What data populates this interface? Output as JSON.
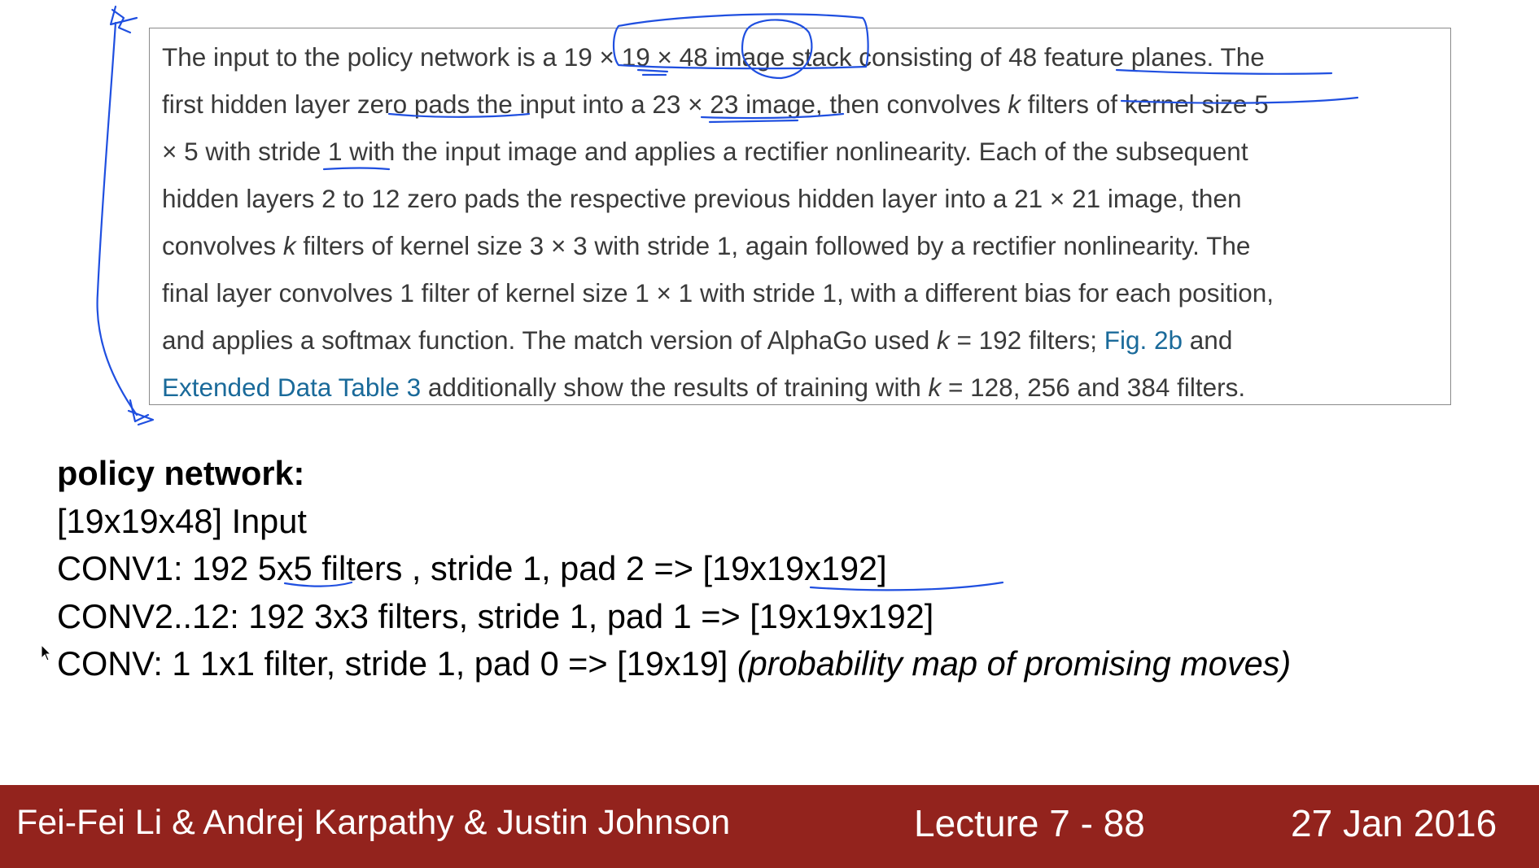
{
  "excerpt": {
    "lines": [
      [
        "The input to the policy network is a 19 × 19 × 48 image stack consisting of 48 feature planes. The"
      ],
      [
        "first hidden layer zero pads the input into a 23 × 23 image, then convolves ",
        "k",
        " filters of kernel size 5"
      ],
      [
        "× 5 with stride 1 with the input image and applies a rectifier nonlinearity. Each of the subsequent"
      ],
      [
        "hidden layers 2 to 12 zero pads the respective previous hidden layer into a 21 × 21 image, then"
      ],
      [
        "convolves ",
        "k",
        " filters of kernel size 3 × 3 with stride 1, again followed by a rectifier nonlinearity. The"
      ],
      [
        "final layer convolves 1 filter of kernel size 1 × 1 with stride 1, with a different bias for each position,"
      ],
      [
        "and applies a softmax function. The match version of AlphaGo used ",
        "k",
        " = 192 filters; ",
        "Fig. 2b",
        " and"
      ],
      [
        "Extended Data Table 3",
        " additionally show the results of training with ",
        "k",
        " = 128, 256 and 384 filters."
      ]
    ]
  },
  "notes": {
    "heading": "policy network:",
    "input_line": "[19x19x48] Input",
    "conv1_line": "CONV1: 192 5x5 filters , stride 1, pad 2 => [19x19x192]",
    "conv2_line": "CONV2..12: 192 3x3 filters, stride 1, pad 1 => [19x19x192]",
    "conv_final_prefix": "CONV: 1 1x1 filter, stride 1, pad 0 => [19x19] ",
    "conv_final_note": "(probability map of promising moves)"
  },
  "footer": {
    "authors": "Fei-Fei Li & Andrej Karpathy & Justin Johnson",
    "lecture": "Lecture 7 - 88",
    "date": "27 Jan 2016"
  },
  "colors": {
    "footer_bg": "#93231d",
    "link": "#1a6a9a",
    "ink": "#1f4fe0"
  },
  "icons": [
    "mouse-pointer-icon"
  ]
}
